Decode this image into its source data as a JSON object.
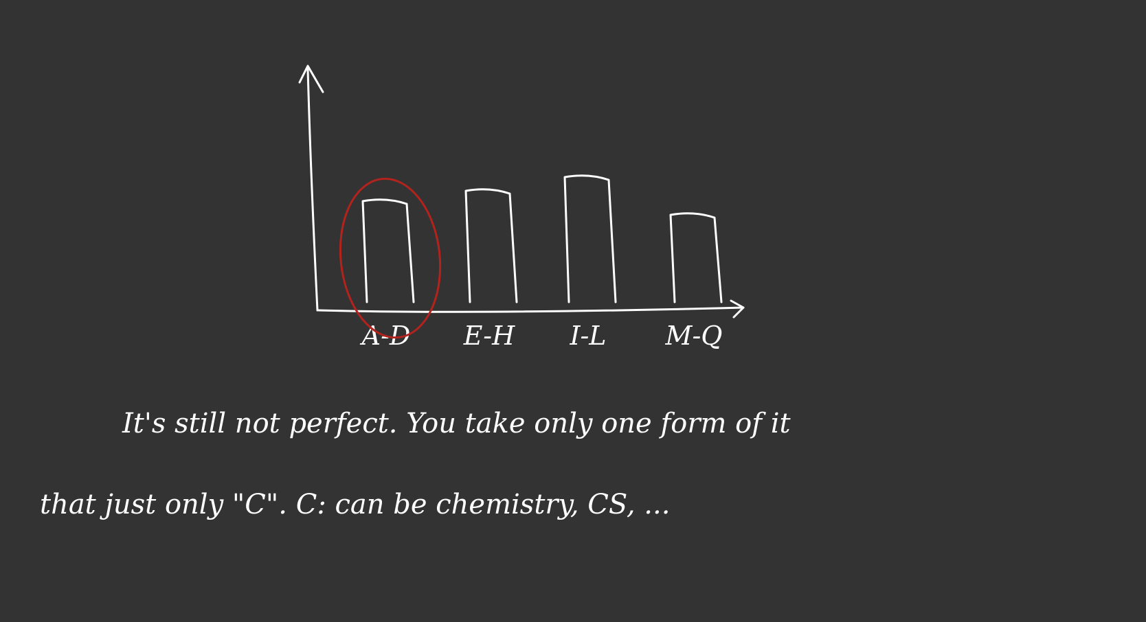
{
  "canvas": {
    "background": "#333333",
    "ink_color": "#ffffff",
    "highlight_color": "#b3231d"
  },
  "chart_data": {
    "type": "bar",
    "categories": [
      "A-D",
      "E-H",
      "I-L",
      "M-Q"
    ],
    "values": [
      155,
      170,
      190,
      135
    ],
    "ylim": [
      0,
      340
    ],
    "title": "",
    "xlabel": "",
    "ylabel": "",
    "grid": false,
    "highlight_category": "A-D"
  },
  "note": {
    "line1": "It's still not perfect. You take only one form of it",
    "line2": "that just only \"C\". C: can be chemistry, CS, ..."
  }
}
